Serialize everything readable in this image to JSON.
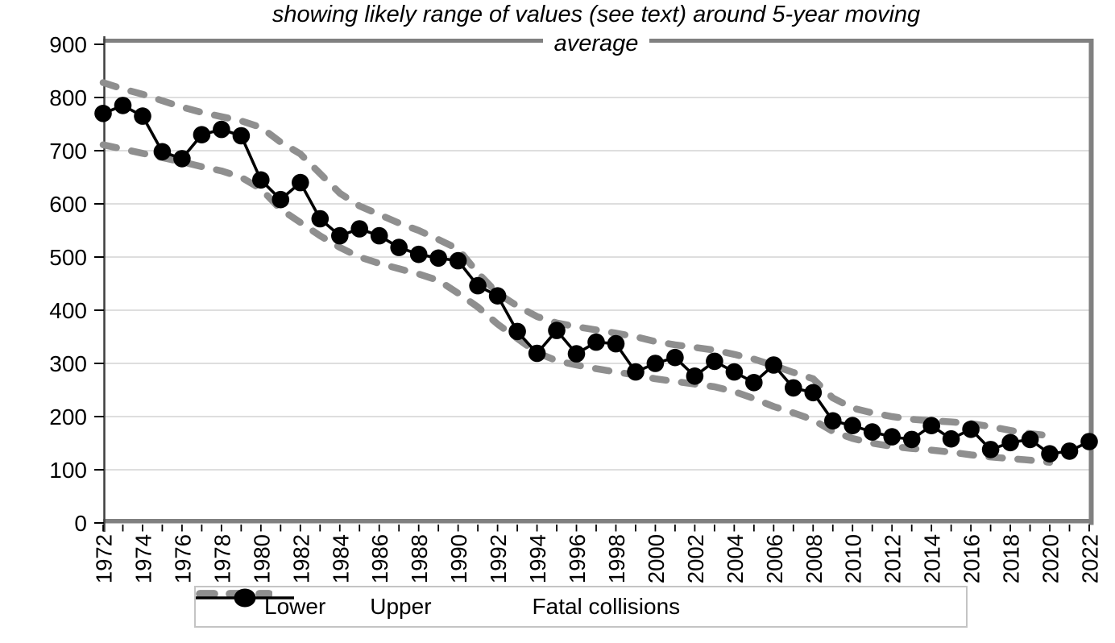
{
  "page": {
    "background": "#ffffff"
  },
  "title": {
    "line1": "showing likely range of values (see text) around 5-year moving",
    "line2": "average"
  },
  "legend": {
    "items": [
      {
        "label": "Lower",
        "swatch": "dashed"
      },
      {
        "label": "Upper",
        "swatch": "dashed"
      },
      {
        "label": "Fatal collisions",
        "swatch": "line-marker"
      }
    ],
    "position": "bottom"
  },
  "colors": {
    "band": "#8f8f8f",
    "series": "#000000",
    "gridline": "#c9c9c9",
    "plot_border": "#808080",
    "axis_line": "#3f3f3f",
    "tick": "#000000",
    "legend_border": "#c4c4c4",
    "text": "#000000"
  },
  "chart_data": {
    "type": "line",
    "title": "showing likely range of values (see text) around 5-year moving average",
    "x_years": [
      1972,
      1973,
      1974,
      1975,
      1976,
      1977,
      1978,
      1979,
      1980,
      1981,
      1982,
      1983,
      1984,
      1985,
      1986,
      1987,
      1988,
      1989,
      1990,
      1991,
      1992,
      1993,
      1994,
      1995,
      1996,
      1997,
      1998,
      1999,
      2000,
      2001,
      2002,
      2003,
      2004,
      2005,
      2006,
      2007,
      2008,
      2009,
      2010,
      2011,
      2012,
      2013,
      2014,
      2015,
      2016,
      2017,
      2018,
      2019,
      2020,
      2021,
      2022
    ],
    "xtick_labels": [
      1972,
      1974,
      1976,
      1978,
      1980,
      1982,
      1984,
      1986,
      1988,
      1990,
      1992,
      1994,
      1996,
      1998,
      2000,
      2002,
      2004,
      2006,
      2008,
      2010,
      2012,
      2014,
      2016,
      2018,
      2020,
      2022
    ],
    "xtick_label_step": 2,
    "ylim": [
      0,
      900
    ],
    "ytick_step": 100,
    "yticks": [
      0,
      100,
      200,
      300,
      400,
      500,
      600,
      700,
      800,
      900
    ],
    "grid": "horizontal",
    "legend_position": "bottom",
    "series": [
      {
        "name": "Lower",
        "style": "dashed",
        "color": "#8f8f8f",
        "start_year": 1972,
        "values": [
          711,
          703,
          695,
          687,
          679,
          670,
          662,
          650,
          628,
          590,
          565,
          540,
          518,
          500,
          488,
          478,
          468,
          456,
          432,
          406,
          374,
          347,
          320,
          305,
          297,
          290,
          284,
          278,
          271,
          266,
          261,
          256,
          247,
          234,
          219,
          207,
          194,
          172,
          159,
          150,
          144,
          140,
          137,
          133,
          128,
          124,
          121,
          118,
          114
        ]
      },
      {
        "name": "Upper",
        "style": "dashed",
        "color": "#8f8f8f",
        "start_year": 1972,
        "values": [
          828,
          816,
          806,
          794,
          782,
          772,
          764,
          756,
          744,
          716,
          694,
          657,
          620,
          596,
          580,
          564,
          550,
          533,
          515,
          470,
          432,
          408,
          388,
          376,
          369,
          363,
          357,
          350,
          341,
          335,
          330,
          325,
          317,
          308,
          296,
          283,
          271,
          235,
          216,
          207,
          200,
          195,
          192,
          190,
          187,
          181,
          174,
          168,
          164
        ]
      },
      {
        "name": "Fatal collisions",
        "style": "solid-markers",
        "color": "#000000",
        "start_year": 1972,
        "values": [
          770,
          785,
          765,
          698,
          685,
          730,
          740,
          728,
          645,
          608,
          640,
          572,
          540,
          553,
          540,
          518,
          505,
          498,
          493,
          446,
          427,
          360,
          319,
          362,
          318,
          340,
          337,
          284,
          300,
          311,
          276,
          304,
          284,
          264,
          297,
          254,
          245,
          192,
          183,
          171,
          162,
          157,
          183,
          158,
          176,
          138,
          151,
          157,
          130,
          135,
          153
        ]
      }
    ]
  }
}
